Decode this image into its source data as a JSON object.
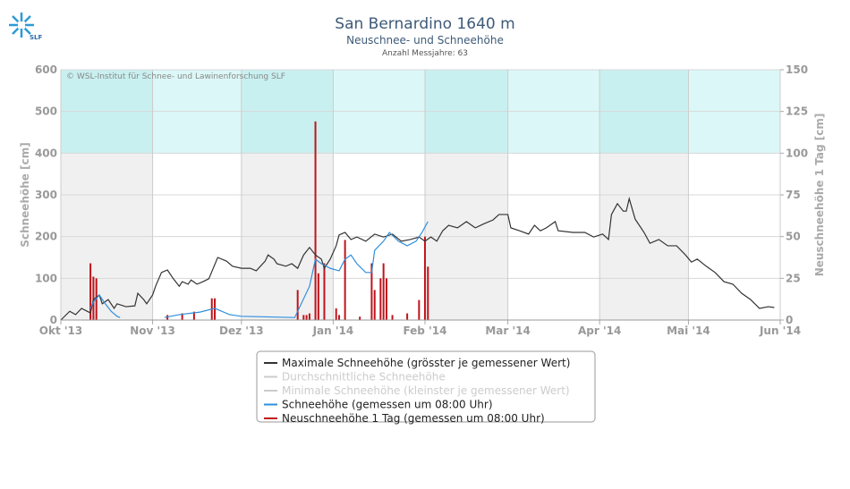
{
  "logo_text": "SLF",
  "chart_data": {
    "type": "line",
    "title": "San Bernardino 1640 m",
    "subtitle": "Neuschnee- und Schneehöhe",
    "note": "Anzahl Messjahre: 63",
    "credit": "© WSL-Institut für Schnee- und Lawinenforschung SLF",
    "ylabel": "Schneehöhe [cm]",
    "y2label": "Neuschneehöhe 1 Tag [cm]",
    "xlim": [
      0,
      243
    ],
    "xticks": [
      {
        "value": 0,
        "label": "Okt '13"
      },
      {
        "value": 31,
        "label": "Nov '13"
      },
      {
        "value": 61,
        "label": "Dez '13"
      },
      {
        "value": 92,
        "label": "Jan '14"
      },
      {
        "value": 123,
        "label": "Feb '14"
      },
      {
        "value": 151,
        "label": "Mar '14"
      },
      {
        "value": 182,
        "label": "Apr '14"
      },
      {
        "value": 212,
        "label": "Mai '14"
      },
      {
        "value": 243,
        "label": "Jun '14"
      }
    ],
    "ylim": [
      0,
      600
    ],
    "yticks": [
      0,
      100,
      200,
      300,
      400,
      500,
      600
    ],
    "y2lim": [
      0,
      150
    ],
    "y2ticks": [
      0,
      25,
      50,
      75,
      100,
      125,
      150
    ],
    "highlight_above": 400,
    "grid": true,
    "series": [
      {
        "name": "Maximale Schneehöhe (grösster je gemessener Wert)",
        "color": "#333333",
        "kind": "line",
        "x": [
          0,
          3,
          5,
          7,
          10,
          11,
          13,
          14,
          16,
          18,
          19,
          22,
          25,
          26,
          28,
          29,
          31,
          32,
          34,
          36,
          38,
          40,
          41,
          43,
          44,
          46,
          48,
          50,
          52,
          53,
          56,
          58,
          61,
          64,
          66,
          69,
          70,
          72,
          73,
          76,
          78,
          80,
          82,
          84,
          86,
          88,
          89,
          91,
          93,
          94,
          96,
          98,
          100,
          103,
          106,
          109,
          112,
          115,
          118,
          121,
          123,
          125,
          127,
          129,
          131,
          134,
          137,
          140,
          143,
          146,
          148,
          151,
          152,
          155,
          158,
          160,
          162,
          164,
          167,
          168,
          173,
          177,
          180,
          183,
          185,
          186,
          188,
          190,
          191,
          192,
          194,
          197,
          199,
          202,
          205,
          208,
          211,
          213,
          215,
          218,
          221,
          224,
          227,
          230,
          233,
          236,
          239,
          241
        ],
        "values": [
          0,
          21,
          13,
          28,
          17,
          49,
          60,
          39,
          49,
          28,
          39,
          32,
          34,
          64,
          49,
          39,
          60,
          81,
          114,
          120,
          99,
          81,
          92,
          86,
          96,
          86,
          92,
          99,
          133,
          150,
          141,
          129,
          124,
          124,
          118,
          141,
          156,
          146,
          135,
          129,
          135,
          124,
          156,
          174,
          156,
          146,
          124,
          146,
          178,
          204,
          210,
          193,
          199,
          189,
          206,
          199,
          206,
          189,
          193,
          199,
          189,
          199,
          189,
          214,
          227,
          221,
          236,
          221,
          231,
          240,
          253,
          253,
          221,
          214,
          206,
          227,
          214,
          221,
          236,
          214,
          210,
          210,
          199,
          206,
          193,
          253,
          279,
          261,
          261,
          291,
          242,
          210,
          184,
          193,
          178,
          178,
          156,
          139,
          146,
          129,
          114,
          92,
          86,
          64,
          49,
          28,
          32,
          30
        ]
      },
      {
        "name": "Durchschnittliche Schneehöhe",
        "color": "#bbbbbb",
        "kind": "line",
        "visible": false
      },
      {
        "name": "Minimale Schneehöhe (kleinster je gemessener Wert)",
        "color": "#bbbbbb",
        "kind": "line",
        "visible": false
      },
      {
        "name": "Schneehöhe (gemessen um 08:00 Uhr)",
        "color": "#2f8fdc",
        "kind": "line",
        "x": [
          10,
          11,
          13,
          15,
          17,
          19,
          20,
          27,
          35,
          40,
          47,
          52,
          57,
          61,
          79,
          84,
          86,
          88,
          91,
          94,
          96,
          98,
          100,
          103,
          105,
          106,
          109,
          111,
          114,
          117,
          120,
          122,
          124
        ],
        "values": [
          28,
          43,
          60,
          39,
          21,
          9,
          6,
          null,
          6,
          13,
          19,
          28,
          13,
          9,
          6,
          81,
          146,
          135,
          124,
          118,
          146,
          156,
          135,
          114,
          114,
          167,
          189,
          210,
          189,
          178,
          189,
          210,
          236
        ]
      },
      {
        "name": "Neuschneehöhe 1 Tag (gemessen um 08:00 Uhr)",
        "color": "#c0141c",
        "kind": "bar",
        "axis": "y2",
        "x": [
          10,
          11,
          12,
          36,
          41,
          45,
          51,
          52,
          80,
          82,
          83,
          84,
          86,
          87,
          89,
          93,
          94,
          96,
          101,
          105,
          106,
          108,
          109,
          110,
          112,
          117,
          121,
          123,
          124
        ],
        "values": [
          34,
          26,
          25,
          3,
          4,
          5,
          13,
          13,
          18,
          3,
          3,
          4,
          119,
          28,
          34,
          7,
          3,
          48,
          2,
          34,
          18,
          25,
          34,
          25,
          3,
          4,
          12,
          50,
          32
        ]
      }
    ]
  }
}
